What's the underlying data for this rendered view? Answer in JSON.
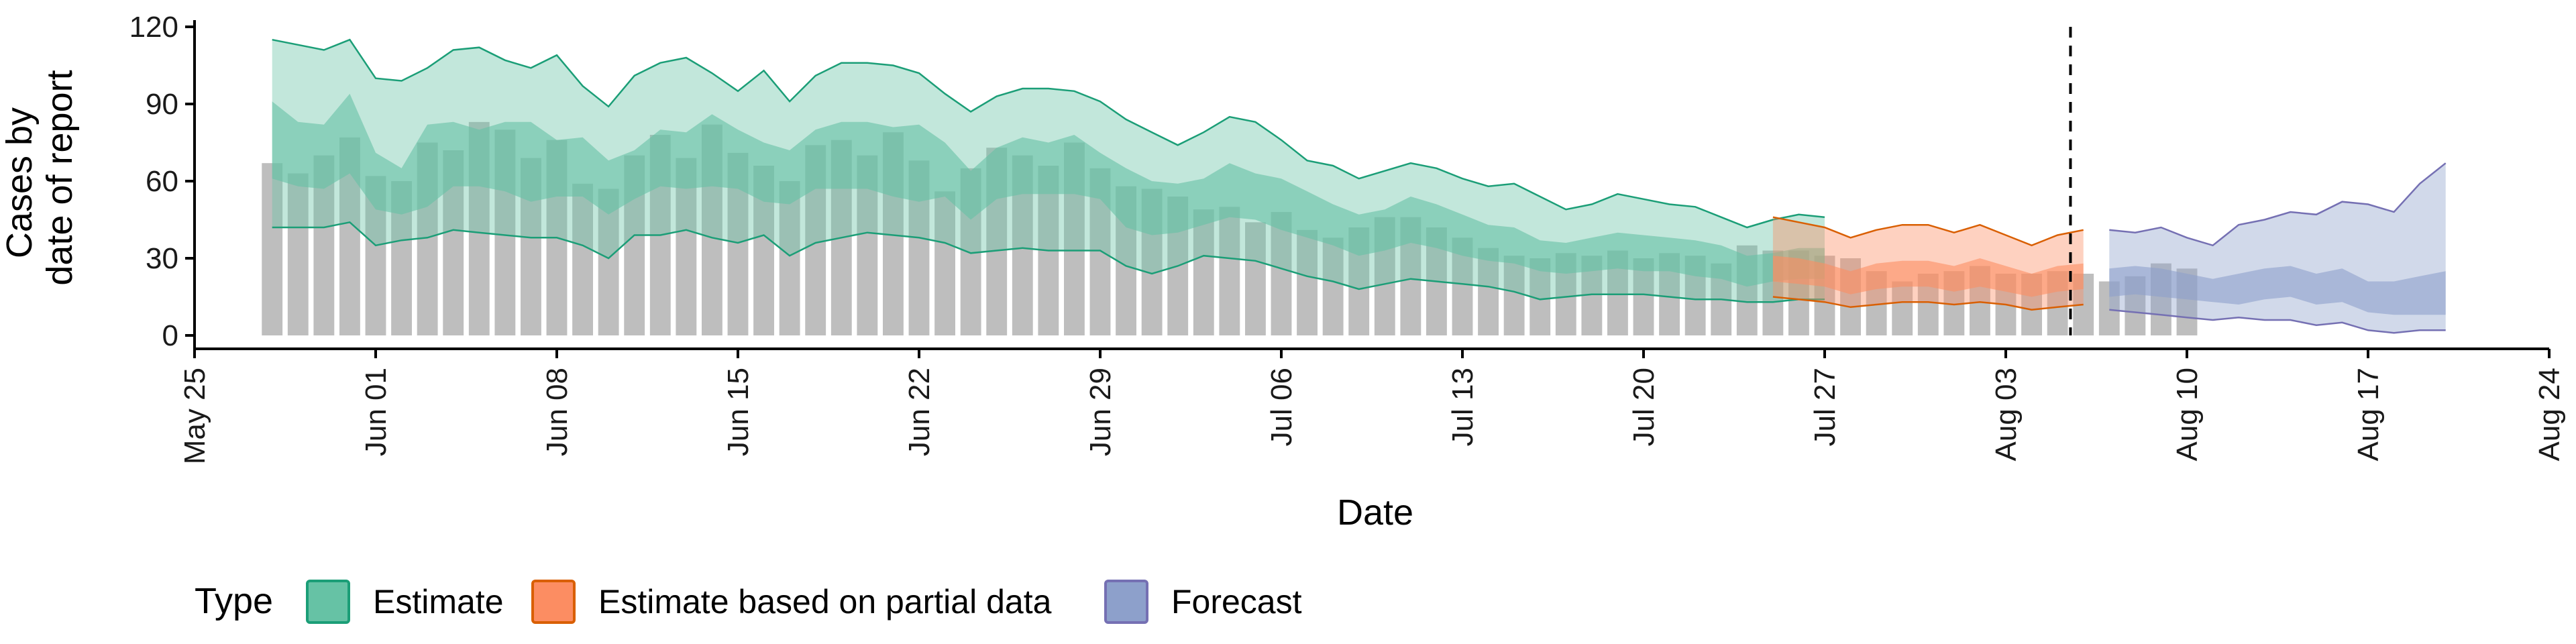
{
  "chart_data": {
    "type": "area",
    "xlabel": "Date",
    "ylabel_lines": [
      "Cases by",
      "date of report"
    ],
    "ylim": [
      0,
      120
    ],
    "y_ticks": [
      0,
      30,
      60,
      90,
      120
    ],
    "x_ticks": [
      {
        "date": "2020-05-25",
        "label": "May 25"
      },
      {
        "date": "2020-06-01",
        "label": "Jun 01"
      },
      {
        "date": "2020-06-08",
        "label": "Jun 08"
      },
      {
        "date": "2020-06-15",
        "label": "Jun 15"
      },
      {
        "date": "2020-06-22",
        "label": "Jun 22"
      },
      {
        "date": "2020-06-29",
        "label": "Jun 29"
      },
      {
        "date": "2020-07-06",
        "label": "Jul 06"
      },
      {
        "date": "2020-07-13",
        "label": "Jul 13"
      },
      {
        "date": "2020-07-20",
        "label": "Jul 20"
      },
      {
        "date": "2020-07-27",
        "label": "Jul 27"
      },
      {
        "date": "2020-08-03",
        "label": "Aug 03"
      },
      {
        "date": "2020-08-10",
        "label": "Aug 10"
      },
      {
        "date": "2020-08-17",
        "label": "Aug 17"
      },
      {
        "date": "2020-08-24",
        "label": "Aug 24"
      }
    ],
    "xlim": [
      "2020-05-25",
      "2020-08-24"
    ],
    "vline_date": "2020-08-05",
    "bars": {
      "start_date": "2020-05-28",
      "color": "#bebebe",
      "values": [
        67,
        63,
        70,
        77,
        62,
        60,
        75,
        72,
        83,
        80,
        69,
        76,
        59,
        57,
        70,
        78,
        69,
        82,
        71,
        66,
        60,
        74,
        76,
        70,
        79,
        68,
        56,
        65,
        73,
        70,
        66,
        75,
        65,
        58,
        57,
        54,
        49,
        50,
        44,
        48,
        41,
        38,
        42,
        46,
        46,
        42,
        38,
        34,
        31,
        30,
        32,
        31,
        33,
        30,
        32,
        31,
        28,
        35,
        33,
        33,
        31,
        30,
        25,
        21,
        24,
        25,
        27,
        24,
        24,
        25,
        24,
        21,
        23,
        28,
        26
      ]
    },
    "series": [
      {
        "name": "Estimate",
        "color": "#1b9e77",
        "fill": "#66c2a5",
        "start_date": "2020-05-28",
        "upper90": [
          115,
          113,
          111,
          115,
          100,
          99,
          104,
          111,
          112,
          107,
          104,
          109,
          97,
          89,
          101,
          106,
          108,
          102,
          95,
          103,
          91,
          101,
          106,
          106,
          105,
          102,
          94,
          87,
          93,
          96,
          96,
          95,
          91,
          84,
          79,
          74,
          79,
          85,
          83,
          76,
          68,
          66,
          61,
          64,
          67,
          65,
          61,
          58,
          59,
          54,
          49,
          51,
          55,
          53,
          51,
          50,
          46,
          42,
          45,
          47,
          46
        ],
        "upper50": [
          91,
          83,
          82,
          94,
          71,
          65,
          82,
          83,
          80,
          83,
          83,
          76,
          77,
          68,
          72,
          80,
          79,
          86,
          80,
          75,
          72,
          80,
          83,
          83,
          81,
          82,
          75,
          64,
          73,
          77,
          75,
          78,
          71,
          65,
          60,
          59,
          61,
          67,
          63,
          61,
          56,
          51,
          47,
          49,
          54,
          51,
          47,
          43,
          42,
          37,
          36,
          38,
          40,
          39,
          38,
          37,
          35,
          31,
          32,
          34,
          34
        ],
        "lower50": [
          61,
          58,
          57,
          63,
          49,
          47,
          50,
          58,
          58,
          56,
          52,
          54,
          54,
          47,
          53,
          58,
          57,
          58,
          57,
          52,
          51,
          57,
          57,
          57,
          54,
          52,
          54,
          45,
          53,
          55,
          55,
          55,
          53,
          42,
          39,
          40,
          43,
          46,
          45,
          41,
          38,
          35,
          31,
          33,
          36,
          34,
          31,
          29,
          28,
          25,
          24,
          25,
          26,
          25,
          25,
          23,
          22,
          19,
          21,
          22,
          22
        ],
        "lower90": [
          42,
          42,
          42,
          44,
          35,
          37,
          38,
          41,
          40,
          39,
          38,
          38,
          35,
          30,
          39,
          39,
          41,
          38,
          36,
          39,
          31,
          36,
          38,
          40,
          39,
          38,
          36,
          32,
          33,
          34,
          33,
          33,
          33,
          27,
          24,
          27,
          31,
          30,
          29,
          26,
          23,
          21,
          18,
          20,
          22,
          21,
          20,
          19,
          17,
          14,
          15,
          16,
          16,
          16,
          15,
          14,
          14,
          13,
          13,
          14,
          14
        ]
      },
      {
        "name": "Estimate based on partial data",
        "color": "#d95f02",
        "fill": "#fc8d62",
        "start_date": "2020-07-25",
        "upper90": [
          46,
          44,
          42,
          38,
          41,
          43,
          43,
          40,
          43,
          39,
          35,
          39,
          41
        ],
        "upper50": [
          31,
          30,
          28,
          25,
          28,
          29,
          29,
          27,
          30,
          27,
          24,
          27,
          28
        ],
        "lower50": [
          21,
          20,
          19,
          16,
          18,
          19,
          19,
          17,
          19,
          17,
          15,
          17,
          18
        ],
        "lower90": [
          15,
          14,
          13,
          11,
          12,
          13,
          13,
          12,
          13,
          12,
          10,
          11,
          12
        ]
      },
      {
        "name": "Forecast",
        "color": "#7570b3",
        "fill": "#8da0cb",
        "start_date": "2020-08-07",
        "upper90": [
          41,
          40,
          42,
          38,
          35,
          43,
          45,
          48,
          47,
          52,
          51,
          48,
          59,
          67
        ],
        "upper50": [
          26,
          27,
          26,
          24,
          22,
          24,
          26,
          27,
          24,
          26,
          21,
          21,
          23,
          25
        ],
        "lower50": [
          15,
          16,
          15,
          14,
          13,
          12,
          14,
          15,
          12,
          13,
          9,
          8,
          8,
          8
        ],
        "lower90": [
          10,
          9,
          8,
          7,
          6,
          7,
          6,
          6,
          4,
          5,
          2,
          1,
          2,
          2
        ]
      }
    ],
    "legend": {
      "title": "Type",
      "position": "bottom-left",
      "entries": [
        {
          "label": "Estimate",
          "color": "#1b9e77",
          "fill": "#66c2a5"
        },
        {
          "label": "Estimate based on partial data",
          "color": "#d95f02",
          "fill": "#fc8d62"
        },
        {
          "label": "Forecast",
          "color": "#7570b3",
          "fill": "#8da0cb"
        }
      ]
    }
  }
}
